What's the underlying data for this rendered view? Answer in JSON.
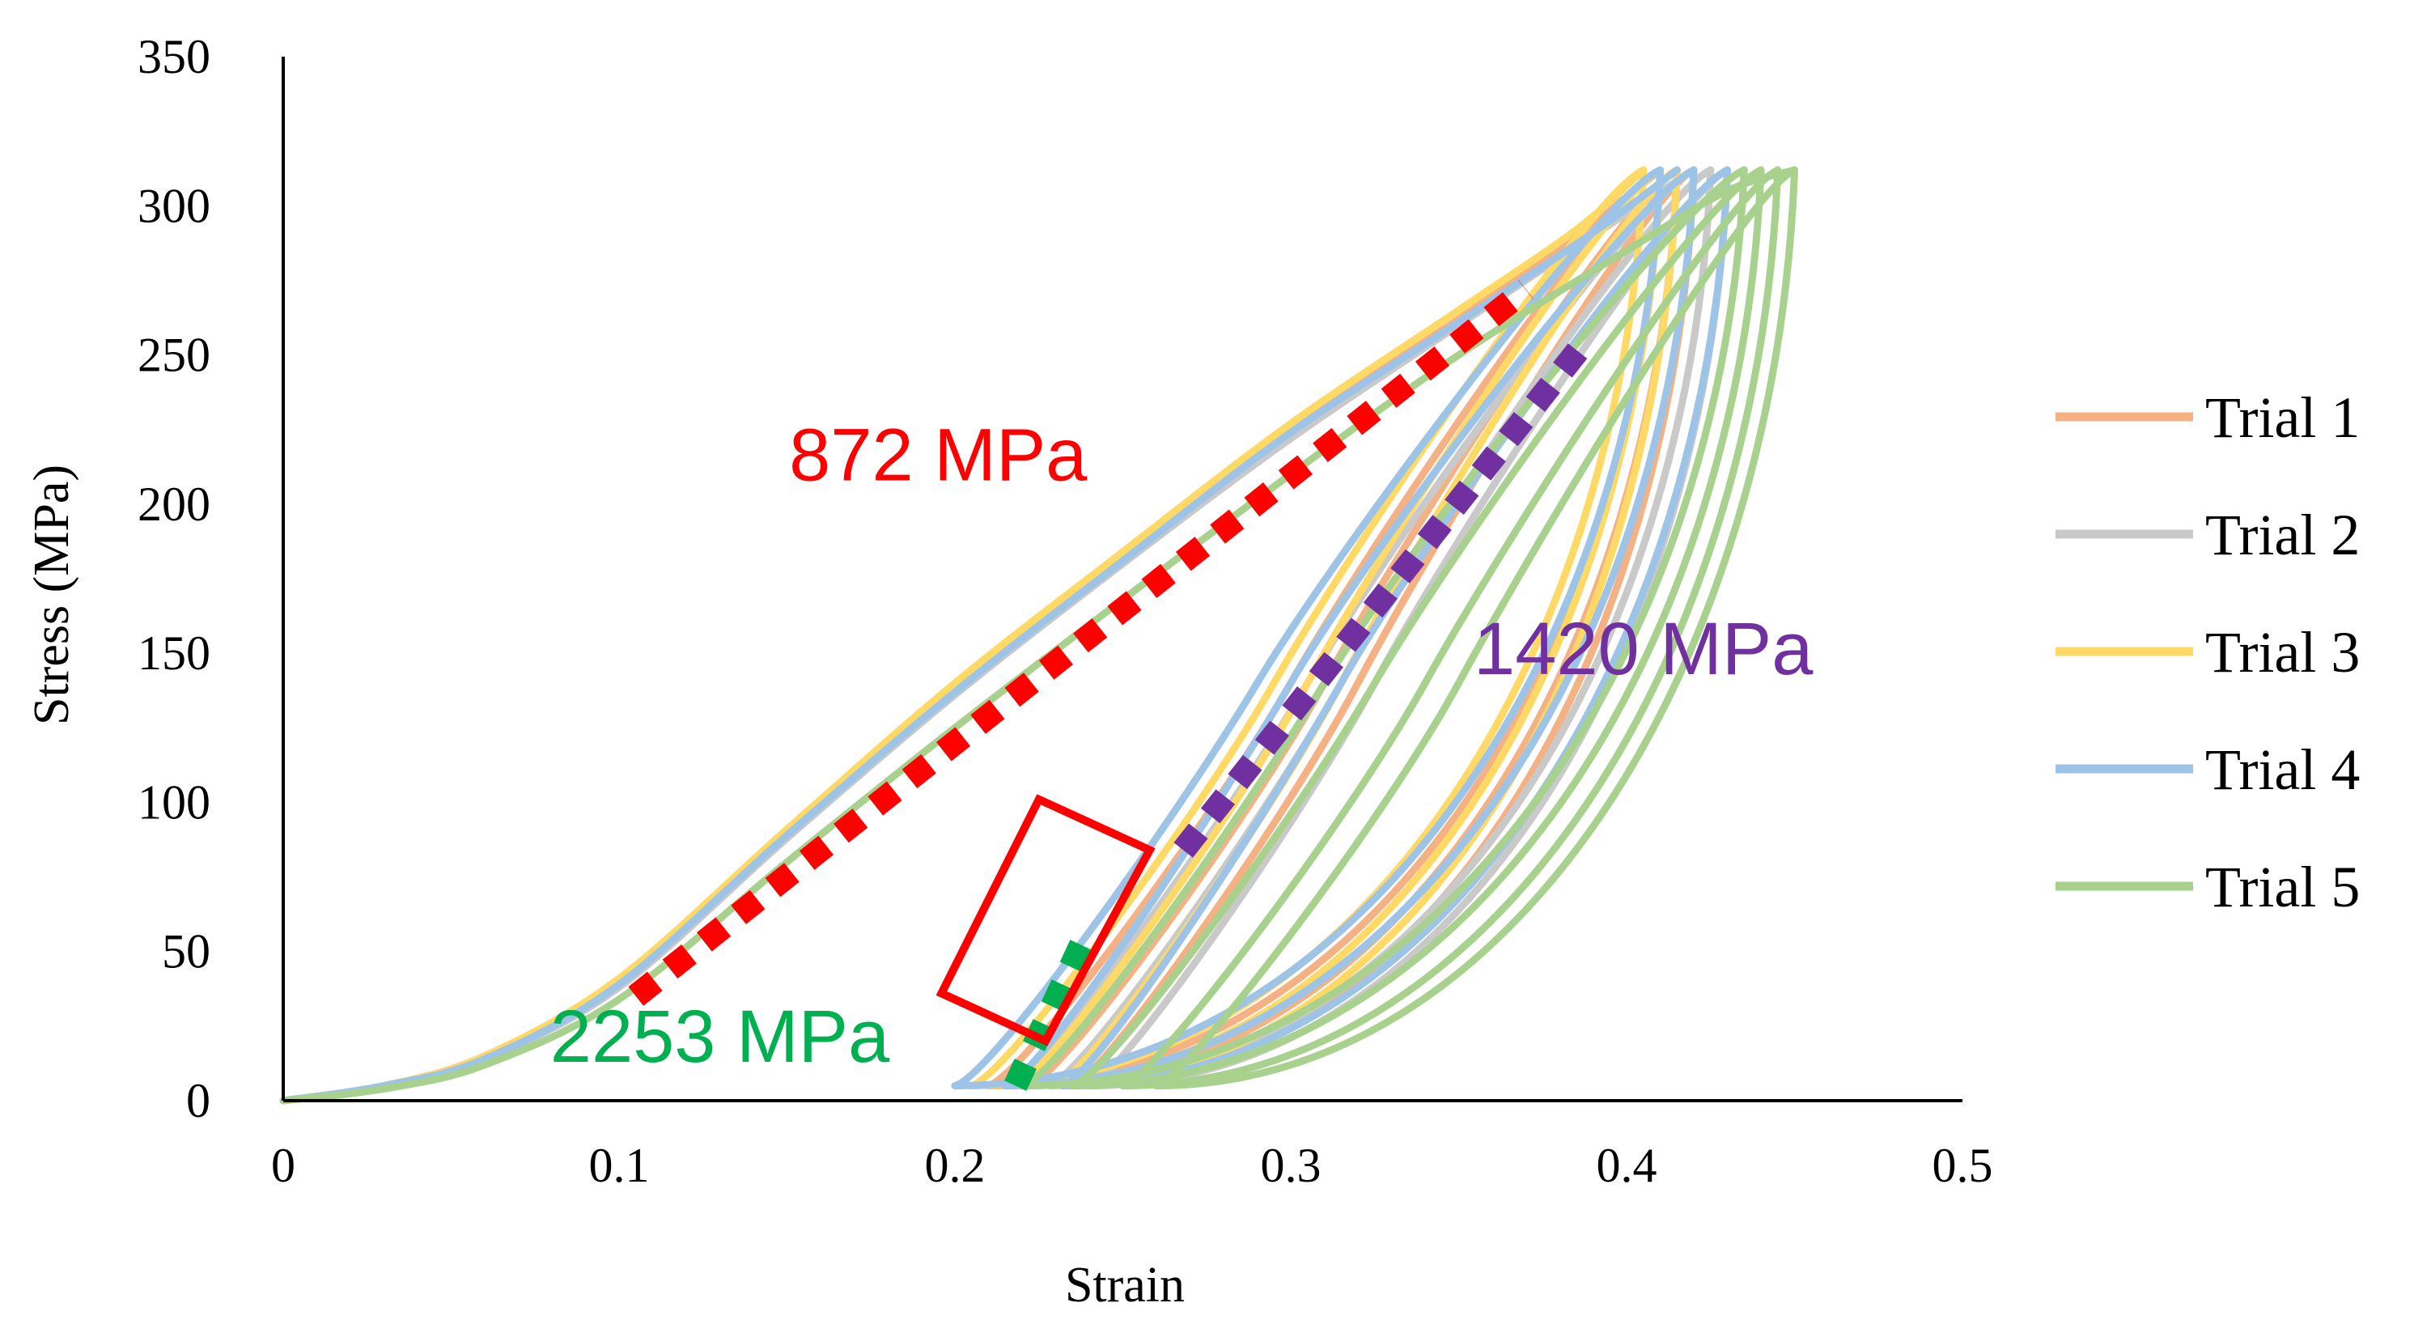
{
  "chart_data": {
    "type": "line",
    "title": "",
    "xlabel": "Strain",
    "ylabel": "Stress (MPa)",
    "xlim": [
      0,
      0.5
    ],
    "ylim": [
      0,
      350
    ],
    "x_ticks": [
      0,
      0.1,
      0.2,
      0.3,
      0.4,
      0.5
    ],
    "y_ticks": [
      0,
      50,
      100,
      150,
      200,
      250,
      300,
      350
    ],
    "x_tick_labels": [
      "0",
      "0.1",
      "0.2",
      "0.3",
      "0.4",
      "0.5"
    ],
    "y_tick_labels": [
      "0",
      "50",
      "100",
      "150",
      "200",
      "250",
      "300",
      "350"
    ],
    "grid": false,
    "legend_position": "right",
    "series": [
      {
        "name": "Trial 1",
        "color": "#F4B183",
        "loading": [
          [
            0,
            0
          ],
          [
            0.03,
            5
          ],
          [
            0.06,
            15
          ],
          [
            0.1,
            40
          ],
          [
            0.15,
            90
          ],
          [
            0.2,
            138
          ],
          [
            0.25,
            182
          ],
          [
            0.3,
            225
          ],
          [
            0.35,
            262
          ],
          [
            0.385,
            290
          ],
          [
            0.41,
            312
          ]
        ],
        "cycles": [
          {
            "peak": [
              0.41,
              312
            ],
            "unload_end": [
              0.21,
              5
            ],
            "reload_mid": [
              0.3,
              140
            ]
          },
          {
            "peak": [
              0.415,
              312
            ],
            "unload_end": [
              0.222,
              5
            ],
            "reload_mid": [
              0.31,
              140
            ]
          },
          {
            "peak": [
              0.42,
              312
            ],
            "unload_end": [
              0.235,
              5
            ],
            "reload_mid": [
              0.32,
              140
            ]
          }
        ]
      },
      {
        "name": "Trial 2",
        "color": "#C9C9C9",
        "loading": [
          [
            0,
            0
          ],
          [
            0.03,
            5
          ],
          [
            0.06,
            14
          ],
          [
            0.1,
            38
          ],
          [
            0.15,
            88
          ],
          [
            0.2,
            136
          ],
          [
            0.25,
            180
          ],
          [
            0.3,
            222
          ],
          [
            0.35,
            260
          ],
          [
            0.39,
            290
          ],
          [
            0.42,
            312
          ]
        ],
        "cycles": [
          {
            "peak": [
              0.42,
              312
            ],
            "unload_end": [
              0.215,
              5
            ],
            "reload_mid": [
              0.305,
              140
            ]
          },
          {
            "peak": [
              0.425,
              312
            ],
            "unload_end": [
              0.228,
              5
            ],
            "reload_mid": [
              0.315,
              140
            ]
          },
          {
            "peak": [
              0.43,
              312
            ],
            "unload_end": [
              0.24,
              5
            ],
            "reload_mid": [
              0.325,
              140
            ]
          }
        ]
      },
      {
        "name": "Trial 3",
        "color": "#FFD966",
        "loading": [
          [
            0,
            0
          ],
          [
            0.03,
            5
          ],
          [
            0.06,
            15
          ],
          [
            0.1,
            41
          ],
          [
            0.15,
            91
          ],
          [
            0.2,
            140
          ],
          [
            0.25,
            184
          ],
          [
            0.3,
            227
          ],
          [
            0.35,
            265
          ],
          [
            0.385,
            292
          ],
          [
            0.405,
            312
          ]
        ],
        "cycles": [
          {
            "peak": [
              0.405,
              312
            ],
            "unload_end": [
              0.205,
              5
            ],
            "reload_mid": [
              0.295,
              140
            ]
          },
          {
            "peak": [
              0.41,
              312
            ],
            "unload_end": [
              0.218,
              5
            ],
            "reload_mid": [
              0.305,
              140
            ]
          },
          {
            "peak": [
              0.415,
              312
            ],
            "unload_end": [
              0.23,
              5
            ],
            "reload_mid": [
              0.315,
              140
            ]
          }
        ]
      },
      {
        "name": "Trial 4",
        "color": "#9DC3E6",
        "loading": [
          [
            0,
            0
          ],
          [
            0.03,
            5
          ],
          [
            0.06,
            14
          ],
          [
            0.1,
            39
          ],
          [
            0.15,
            89
          ],
          [
            0.2,
            137
          ],
          [
            0.25,
            181
          ],
          [
            0.3,
            224
          ],
          [
            0.35,
            261
          ],
          [
            0.39,
            291
          ],
          [
            0.415,
            312
          ]
        ],
        "cycles": [
          {
            "peak": [
              0.41,
              312
            ],
            "unload_end": [
              0.2,
              5
            ],
            "reload_mid": [
              0.29,
              140
            ]
          },
          {
            "peak": [
              0.42,
              312
            ],
            "unload_end": [
              0.215,
              5
            ],
            "reload_mid": [
              0.3,
              140
            ]
          },
          {
            "peak": [
              0.43,
              312
            ],
            "unload_end": [
              0.232,
              5
            ],
            "reload_mid": [
              0.315,
              140
            ]
          }
        ]
      },
      {
        "name": "Trial 5",
        "color": "#A9D18E",
        "loading": [
          [
            0,
            0
          ],
          [
            0.03,
            4
          ],
          [
            0.06,
            12
          ],
          [
            0.1,
            34
          ],
          [
            0.15,
            80
          ],
          [
            0.2,
            125
          ],
          [
            0.25,
            168
          ],
          [
            0.3,
            210
          ],
          [
            0.35,
            250
          ],
          [
            0.4,
            285
          ],
          [
            0.43,
            305
          ],
          [
            0.45,
            312
          ]
        ],
        "cycles": [
          {
            "peak": [
              0.435,
              312
            ],
            "unload_end": [
              0.22,
              5
            ],
            "reload_mid": [
              0.31,
              140
            ]
          },
          {
            "peak": [
              0.44,
              312
            ],
            "unload_end": [
              0.235,
              5
            ],
            "reload_mid": [
              0.325,
              140
            ]
          },
          {
            "peak": [
              0.445,
              312
            ],
            "unload_end": [
              0.25,
              5
            ],
            "reload_mid": [
              0.34,
              140
            ]
          },
          {
            "peak": [
              0.45,
              312
            ],
            "unload_end": [
              0.26,
              5
            ],
            "reload_mid": [
              0.35,
              140
            ]
          }
        ]
      }
    ],
    "fit_lines": [
      {
        "label": "872 MPa",
        "modulus": 872,
        "color": "#FF0000",
        "from": [
          0.105,
          35
        ],
        "to": [
          0.37,
          272
        ]
      },
      {
        "label": "1420 MPa",
        "modulus": 1420,
        "color": "#7030A0",
        "from": [
          0.268,
          84
        ],
        "to": [
          0.388,
          255
        ]
      },
      {
        "label": "2253 MPa",
        "modulus": 2253,
        "color": "#00B050",
        "from": [
          0.218,
          5
        ],
        "to": [
          0.24,
          58
        ]
      }
    ],
    "annotations": [
      {
        "text": "872 MPa",
        "color": "#FF0000",
        "at": [
          0.195,
          208
        ]
      },
      {
        "text": "1420 MPa",
        "color": "#7030A0",
        "at": [
          0.405,
          143
        ]
      },
      {
        "text": "2253 MPa",
        "color": "#00B050",
        "at": [
          0.13,
          13
        ]
      }
    ],
    "highlight_box": {
      "color": "#FF0000",
      "corners": [
        [
          0.225,
          101
        ],
        [
          0.258,
          84
        ],
        [
          0.227,
          20
        ],
        [
          0.196,
          36
        ]
      ]
    }
  }
}
